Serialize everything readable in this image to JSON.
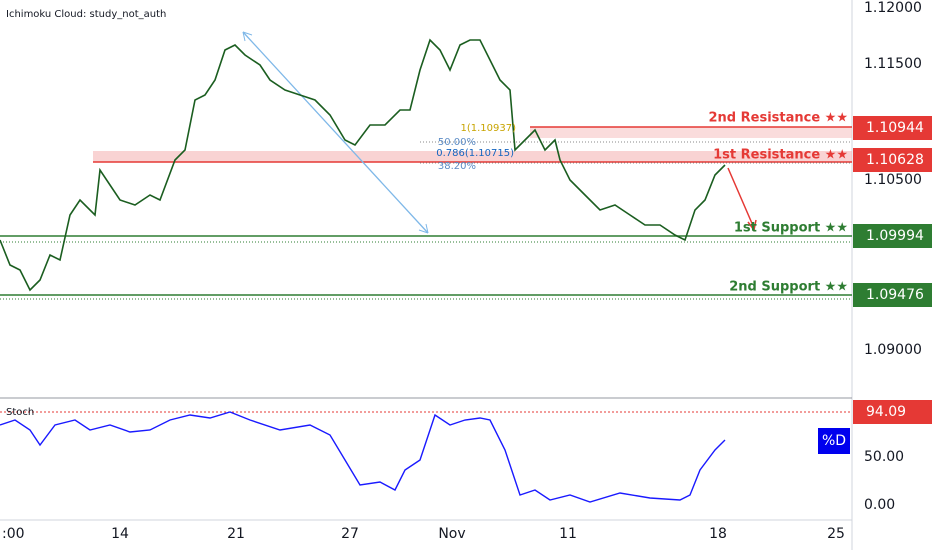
{
  "header": {
    "title": "Ichimoku Cloud: study_not_auth"
  },
  "price_axis": {
    "ticks": [
      "1.12000",
      "1.11500",
      "1.10500",
      "1.09000"
    ]
  },
  "levels": [
    {
      "label": "2nd Resistance ★★",
      "price": "1.10944"
    },
    {
      "label": "1st Resistance ★★",
      "price": "1.10628"
    },
    {
      "label": "1st Support ★★",
      "price": "1.09994"
    },
    {
      "label": "2nd Support ★★",
      "price": "1.09476"
    }
  ],
  "fib": {
    "level_50": "50.00%",
    "level_382": "38.20%",
    "level_1": "1(1.10937)",
    "level_786": "0.786(1.10715)"
  },
  "stoch": {
    "title": "Stoch",
    "current": "94.09",
    "series_label": "%D",
    "ticks": [
      "50.00",
      "0.00"
    ]
  },
  "date_axis": {
    "ticks": [
      ":00",
      "14",
      "21",
      "27",
      "Nov",
      "11",
      "18",
      "25"
    ]
  }
}
